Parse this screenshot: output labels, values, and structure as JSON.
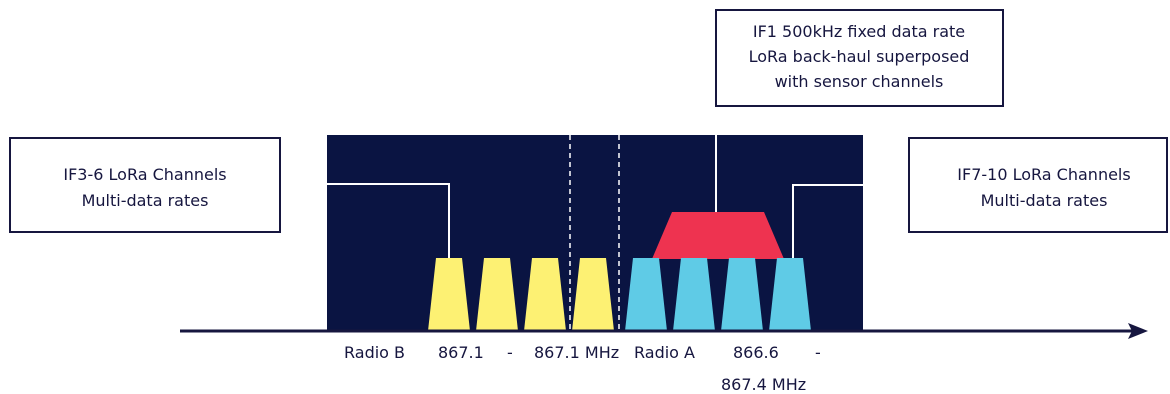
{
  "colors": {
    "panel": "#0a1442",
    "axis": "#16163f",
    "sensor_left": "#fdf173",
    "sensor_right": "#5fcbe6",
    "backhaul": "#ee3350",
    "box_border": "#16163f",
    "box_fill": "#ffffff",
    "divider": "#ffffff"
  },
  "callouts": {
    "left": {
      "line1": "IF3-6 LoRa Channels",
      "line2": "Multi-data rates"
    },
    "top": {
      "line1": "IF1 500kHz fixed data rate",
      "line2": "LoRa back-haul superposed",
      "line3": "with sensor channels"
    },
    "right": {
      "line1": "IF7-10 LoRa Channels",
      "line2": "Multi-data rates"
    }
  },
  "axis_labels": {
    "radio_b": "Radio B",
    "b_low": "867.1",
    "b_dash": "-",
    "b_high": "867.1 MHz",
    "radio_a": "Radio A",
    "a_low": "866.6",
    "a_dash": "-",
    "a_high": "867.4 MHz"
  },
  "channels": {
    "radio_b_count": 4,
    "radio_a_count": 4
  },
  "icons": {
    "axis_arrow": "arrow-right-icon"
  }
}
